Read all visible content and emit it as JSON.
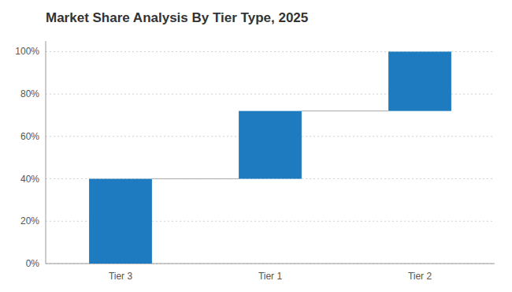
{
  "chart_data": {
    "type": "waterfall",
    "title": "Market Share Analysis By Tier Type, 2025",
    "categories": [
      "Tier 3",
      "Tier 1",
      "Tier 2"
    ],
    "values": [
      40,
      32,
      28
    ],
    "color": "#1E7BBF",
    "ylim": [
      0,
      105
    ],
    "yticks": [
      {
        "value": 0,
        "label": "0%"
      },
      {
        "value": 20,
        "label": "20%"
      },
      {
        "value": 40,
        "label": "40%"
      },
      {
        "value": 60,
        "label": "60%"
      },
      {
        "value": 80,
        "label": "80%"
      },
      {
        "value": 100,
        "label": "100%"
      }
    ],
    "grid": true
  }
}
